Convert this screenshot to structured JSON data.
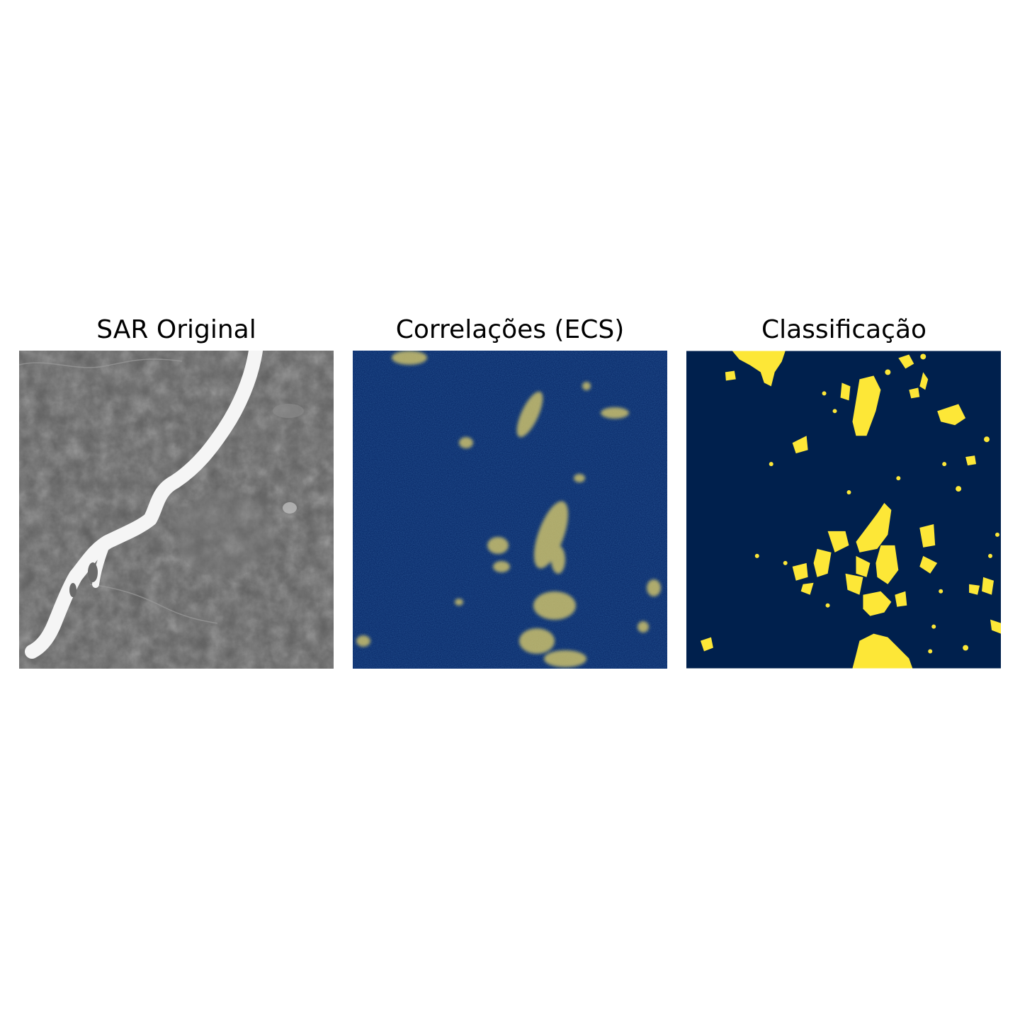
{
  "figure": {
    "panels": [
      {
        "title": "SAR Original",
        "kind": "grayscale-sar-image"
      },
      {
        "title": "Correlações (ECS)",
        "kind": "correlation-map",
        "colors": {
          "background": "#0d2f6e",
          "highlight": "#e8d86a"
        }
      },
      {
        "title": "Classificação",
        "kind": "binary-classification-map",
        "colors": {
          "background": "#00204d",
          "highlight": "#fde737"
        }
      }
    ]
  }
}
